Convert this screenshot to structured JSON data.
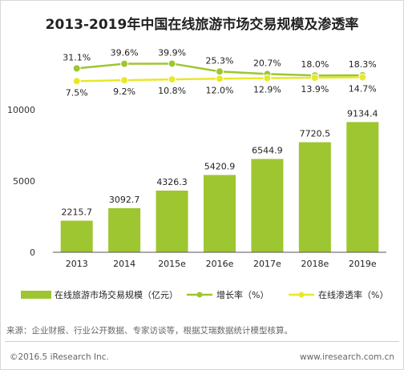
{
  "chart_data": {
    "type": "bar",
    "title": "2013-2019年中国在线旅游市场交易规模及渗透率",
    "categories": [
      "2013",
      "2014",
      "2015e",
      "2016e",
      "2017e",
      "2018e",
      "2019e"
    ],
    "series": [
      {
        "name": "在线旅游市场交易规模（亿元）",
        "type": "bar",
        "color": "#9dc630",
        "values": [
          2215.7,
          3092.7,
          4326.3,
          5420.9,
          6544.9,
          7720.5,
          9134.4
        ],
        "labels": [
          "2215.7",
          "3092.7",
          "4326.3",
          "5420.9",
          "6544.9",
          "7720.5",
          "9134.4"
        ]
      },
      {
        "name": "增长率（%）",
        "type": "line",
        "color": "#9dc630",
        "values": [
          31.1,
          39.6,
          39.9,
          25.3,
          20.7,
          18.0,
          18.3
        ],
        "labels": [
          "31.1%",
          "39.6%",
          "39.9%",
          "25.3%",
          "20.7%",
          "18.0%",
          "18.3%"
        ]
      },
      {
        "name": "在线渗透率（%）",
        "type": "line",
        "color": "#e8e82a",
        "values": [
          7.5,
          9.2,
          10.8,
          12.0,
          12.9,
          13.9,
          14.7
        ],
        "labels": [
          "7.5%",
          "9.2%",
          "10.8%",
          "12.0%",
          "12.9%",
          "13.9%",
          "14.7%"
        ]
      }
    ],
    "y_ticks": [
      "0",
      "5000",
      "10000"
    ],
    "ylim": [
      0,
      10000
    ],
    "grid": false,
    "legend_position": "bottom"
  },
  "source": "来源：企业财报、行业公开数据、专家访谈等，根据艾瑞数据统计模型核算。",
  "copyright": "©2016.5 iResearch Inc.",
  "website": "www.iresearch.com.cn"
}
